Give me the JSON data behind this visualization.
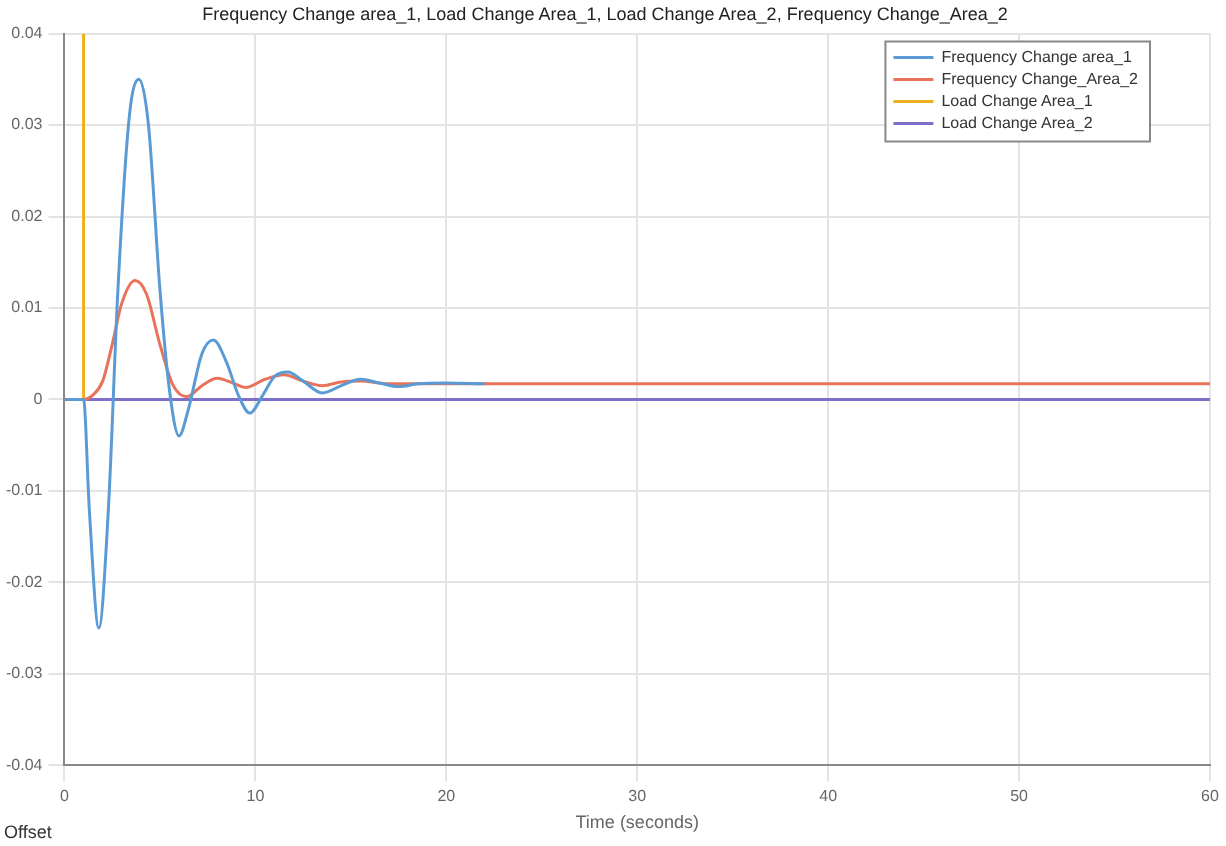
{
  "chart_data": {
    "type": "line",
    "title": "Frequency Change area_1, Load Change Area_1, Load Change Area_2, Frequency Change_Area_2",
    "xlabel": "Time (seconds)",
    "xlim": [
      0,
      60
    ],
    "xticks": [
      0,
      10,
      20,
      30,
      40,
      50,
      60
    ],
    "ylim": [
      -0.04,
      0.04
    ],
    "yticks": [
      -0.04,
      -0.03,
      -0.02,
      -0.01,
      0,
      0.01,
      0.02,
      0.03,
      0.04
    ],
    "grid": true,
    "legend": "top right",
    "marker": "none",
    "line_style": "solid",
    "annotations": [
      "Offset"
    ],
    "series": [
      {
        "name": "Frequency Change area_1",
        "color": "#5b9bd5",
        "x": [
          0,
          1,
          1.3,
          1.8,
          2.3,
          2.8,
          3.4,
          3.9,
          4.4,
          5,
          5.5,
          6,
          6.5,
          7.2,
          7.8,
          8.5,
          9.1,
          9.7,
          10.4,
          11,
          11.7,
          12.5,
          13.5,
          14.5,
          15.5,
          16.5,
          17.5,
          18.5,
          20,
          22
        ],
        "values": [
          0,
          0,
          -0.012,
          -0.025,
          -0.012,
          0.012,
          0.031,
          0.035,
          0.03,
          0.012,
          0.001,
          -0.004,
          -0.001,
          0.005,
          0.0065,
          0.004,
          0.0005,
          -0.0015,
          0.0005,
          0.0025,
          0.003,
          0.002,
          0.0007,
          0.0015,
          0.0022,
          0.0018,
          0.0014,
          0.0017,
          0.0018,
          0.0017
        ]
      },
      {
        "name": "Frequency Change_Area_2",
        "color": "#e8735a",
        "x": [
          0,
          1,
          1.5,
          2,
          2.5,
          3,
          3.7,
          4.3,
          5,
          5.7,
          6.4,
          7.2,
          8,
          8.8,
          9.5,
          10.5,
          11.5,
          12.5,
          13.5,
          14.5,
          15.5,
          17,
          20,
          60
        ],
        "values": [
          0,
          0,
          0.0005,
          0.002,
          0.006,
          0.0105,
          0.013,
          0.0115,
          0.006,
          0.0015,
          0.0003,
          0.0015,
          0.0023,
          0.0018,
          0.0013,
          0.0022,
          0.0027,
          0.002,
          0.0015,
          0.0019,
          0.002,
          0.0017,
          0.0017,
          0.0017
        ]
      },
      {
        "name": "Load Change Area_1",
        "color": "#edb120",
        "x": [
          0,
          1,
          1
        ],
        "values": [
          0,
          0,
          0.04
        ]
      },
      {
        "name": "Load Change Area_2",
        "color": "#7e6fc8",
        "x": [
          0,
          60
        ],
        "values": [
          0,
          0
        ]
      }
    ]
  }
}
